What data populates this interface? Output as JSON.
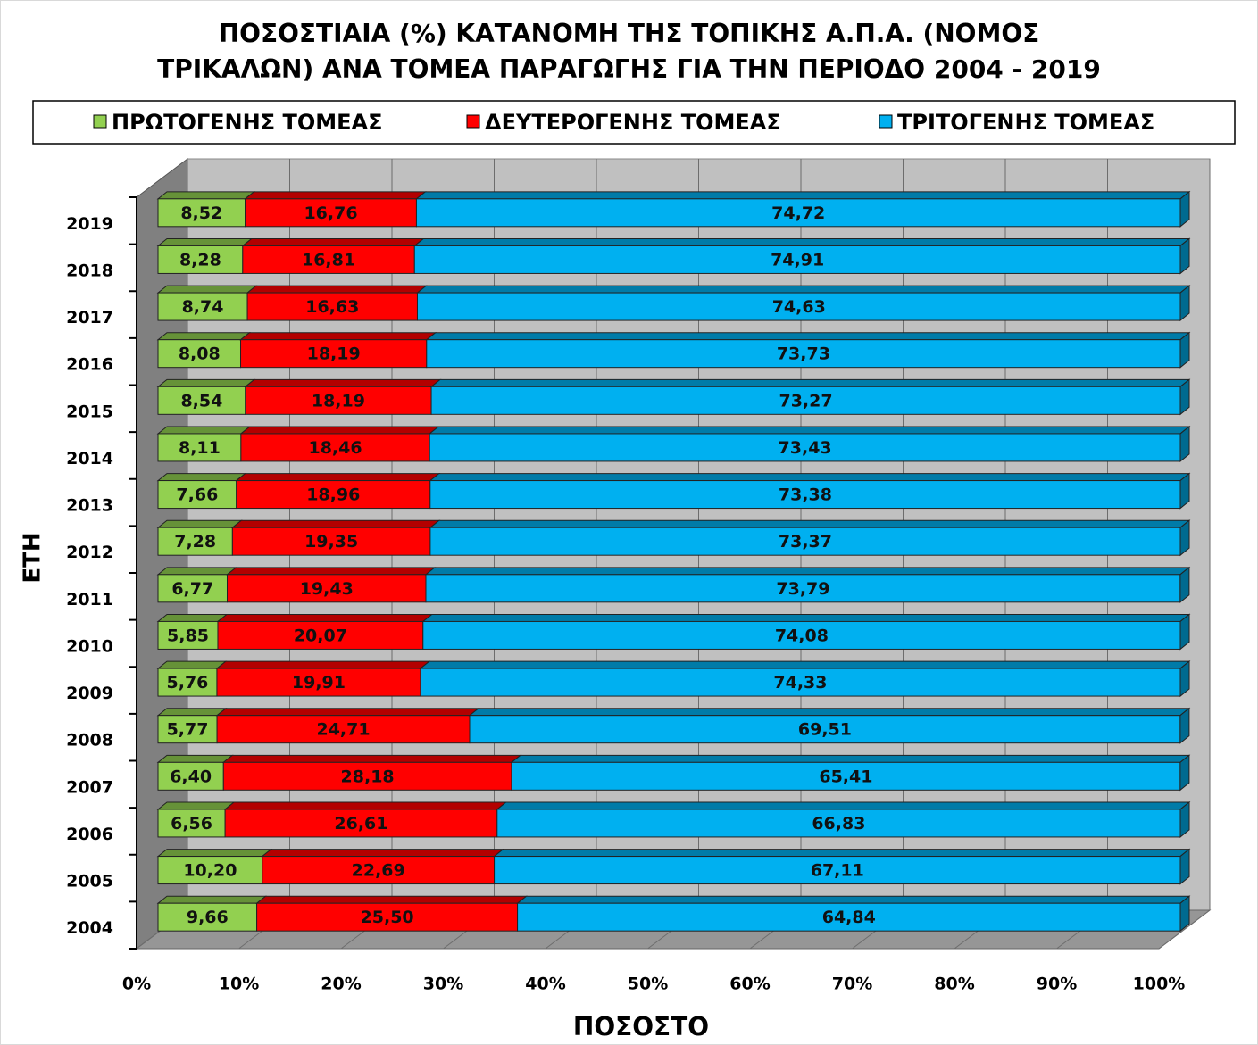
{
  "chart_data": {
    "type": "bar3d_stacked_horizontal",
    "title": "ΠΟΣΟΣΤΙΑΙΑ (%) ΚΑΤΑΝΟΜΗ ΤΗΣ ΤΟΠΙΚΗΣ Α.Π.Α. (ΝΟΜΟΣ ΤΡΙΚΑΛΩΝ) ΑΝΑ ΤΟΜΕΑ ΠΑΡΑΓΩΓΗΣ ΓΙΑ ΤΗΝ ΠΕΡΙΟΔΟ 2004 - 2019",
    "x_label": "ΠΟΣΟΣΤΟ",
    "y_label": "ΕΤΗ",
    "categories": [
      "2004",
      "2005",
      "2006",
      "2007",
      "2008",
      "2009",
      "2010",
      "2011",
      "2012",
      "2013",
      "2014",
      "2015",
      "2016",
      "2017",
      "2018",
      "2019"
    ],
    "series": [
      {
        "name": "ΠΡΩΤΟΓΕΝΗΣ ΤΟΜΕΑΣ",
        "color": "#92d050",
        "values": [
          9.66,
          10.2,
          6.56,
          6.4,
          5.77,
          5.76,
          5.85,
          6.77,
          7.28,
          7.66,
          8.11,
          8.54,
          8.08,
          8.74,
          8.28,
          8.52
        ],
        "value_labels": [
          "9,66",
          "10,20",
          "6,56",
          "6,40",
          "5,77",
          "5,76",
          "5,85",
          "6,77",
          "7,28",
          "7,66",
          "8,11",
          "8,54",
          "8,08",
          "8,74",
          "8,28",
          "8,52"
        ]
      },
      {
        "name": "ΔΕΥΤΕΡΟΓΕΝΗΣ ΤΟΜΕΑΣ",
        "color": "#ff0000",
        "values": [
          25.5,
          22.69,
          26.61,
          28.18,
          24.71,
          19.91,
          20.07,
          19.43,
          19.35,
          18.96,
          18.46,
          18.19,
          18.19,
          16.63,
          16.81,
          16.76
        ],
        "value_labels": [
          "25,50",
          "22,69",
          "26,61",
          "28,18",
          "24,71",
          "19,91",
          "20,07",
          "19,43",
          "19,35",
          "18,96",
          "18,46",
          "18,19",
          "18,19",
          "16,63",
          "16,81",
          "16,76"
        ]
      },
      {
        "name": "ΤΡΙΤΟΓΕΝΗΣ ΤΟΜΕΑΣ",
        "color": "#00b0f0",
        "values": [
          64.84,
          67.11,
          66.83,
          65.41,
          69.51,
          74.33,
          74.08,
          73.79,
          73.37,
          73.38,
          73.43,
          73.27,
          73.73,
          74.63,
          74.91,
          74.72
        ],
        "value_labels": [
          "64,84",
          "67,11",
          "66,83",
          "65,41",
          "69,51",
          "74,33",
          "74,08",
          "73,79",
          "73,37",
          "73,38",
          "73,43",
          "73,27",
          "73,73",
          "74,63",
          "74,91",
          "74,72"
        ]
      }
    ],
    "xlim": [
      0,
      100
    ],
    "xticks": [
      {
        "value": 0,
        "label": "0%"
      },
      {
        "value": 10,
        "label": "10%"
      },
      {
        "value": 20,
        "label": "20%"
      },
      {
        "value": 30,
        "label": "30%"
      },
      {
        "value": 40,
        "label": "40%"
      },
      {
        "value": 50,
        "label": "50%"
      },
      {
        "value": 60,
        "label": "60%"
      },
      {
        "value": 70,
        "label": "70%"
      },
      {
        "value": 80,
        "label": "80%"
      },
      {
        "value": 90,
        "label": "90%"
      },
      {
        "value": 100,
        "label": "100%"
      }
    ],
    "grid": true,
    "legend": "top"
  }
}
